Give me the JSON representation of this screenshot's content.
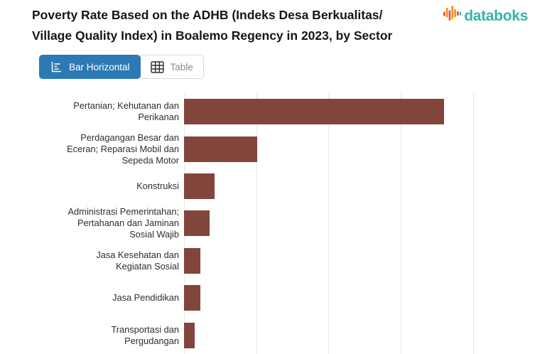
{
  "header": {
    "title_lines": [
      "Poverty Rate Based on the ADHB (Indeks Desa Berkualitas/",
      "Village Quality Index) in Boalemo Regency in 2023, by Sector"
    ],
    "brand": "databoks"
  },
  "toolbar": {
    "bar_horizontal_label": "Bar Horizontal",
    "table_label": "Table",
    "active_view": "Bar Horizontal"
  },
  "colors": {
    "bar": "#82453c",
    "active_button_blue": "#2b7ab5",
    "brand_teal": "#35b3a9",
    "logo_orange": "#f7941d",
    "logo_red": "#e2574c",
    "gridline": "#e7e7e7"
  },
  "chart_data": {
    "type": "bar",
    "orientation": "horizontal",
    "title": "Poverty Rate Based on the ADHB (Indeks Desa Berkualitas/Village Quality Index) in Boalemo Regency in 2023, by Sector",
    "categories": [
      "Pertanian; Kehutanan dan Perikanan",
      "Perdagangan Besar dan Eceran; Reparasi Mobil dan Sepeda Motor",
      "Konstruksi",
      "Administrasi Pemerintahan; Pertahanan dan Jaminan Sosial Wajib",
      "Jasa Kesehatan dan Kegiatan Sosial",
      "Jasa Pendidikan",
      "Transportasi dan Pergudangan"
    ],
    "category_label_lines": [
      [
        "Pertanian; Kehutanan dan",
        "Perikanan"
      ],
      [
        "Perdagangan Besar dan",
        "Eceran; Reparasi Mobil dan",
        "Sepeda Motor"
      ],
      [
        "Konstruksi"
      ],
      [
        "Administrasi Pemerintahan;",
        "Pertahanan dan Jaminan",
        "Sosial Wajib"
      ],
      [
        "Jasa Kesehatan dan",
        "Kegiatan Sosial"
      ],
      [
        "Jasa Pendidikan"
      ],
      [
        "Transportasi dan",
        "Pergudangan"
      ]
    ],
    "values": [
      3.6,
      1.01,
      0.42,
      0.35,
      0.23,
      0.23,
      0.15
    ],
    "value_note": "x-axis tick labels cut off below screenshot; values estimated in gridline units (1 unit = 1 gridline interval)",
    "xlim": [
      0,
      4.86
    ],
    "gridline_interval": 1,
    "grid": true,
    "legend": false,
    "bar_color": "#82453c",
    "x_axis_cut_off": true
  }
}
